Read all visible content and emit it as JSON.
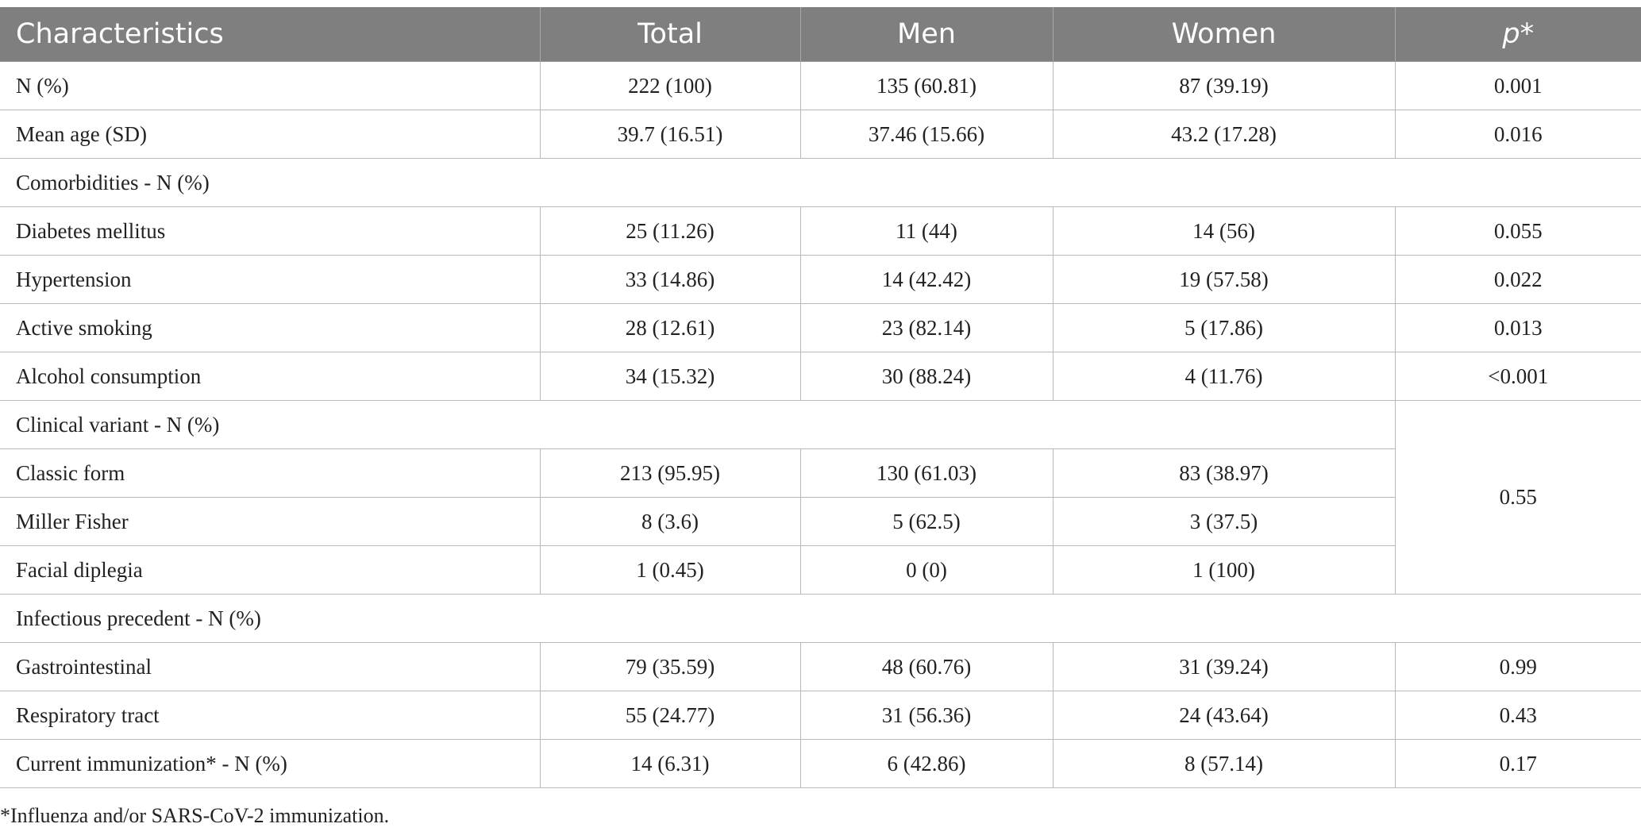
{
  "table": {
    "headers": [
      "Characteristics",
      "Total",
      "Men",
      "Women",
      "p*"
    ],
    "rows": [
      [
        "N (%)",
        "222 (100)",
        "135 (60.81)",
        "87 (39.19)",
        "0.001"
      ],
      [
        "Mean age (SD)",
        "39.7 (16.51)",
        "37.46 (15.66)",
        "43.2 (17.28)",
        "0.016"
      ],
      [
        "Comorbidities - N (%)"
      ],
      [
        "Diabetes mellitus",
        "25 (11.26)",
        "11 (44)",
        "14 (56)",
        "0.055"
      ],
      [
        "Hypertension",
        "33 (14.86)",
        "14 (42.42)",
        "19 (57.58)",
        "0.022"
      ],
      [
        "Active smoking",
        "28 (12.61)",
        "23 (82.14)",
        "5 (17.86)",
        "0.013"
      ],
      [
        "Alcohol consumption",
        "34 (15.32)",
        "30 (88.24)",
        "4 (11.76)",
        "<0.001"
      ],
      [
        "Clinical variant - N (%)"
      ],
      [
        "Classic form",
        "213 (95.95)",
        "130 (61.03)",
        "83 (38.97)",
        "0.55"
      ],
      [
        "Miller Fisher",
        "8 (3.6)",
        "5 (62.5)",
        "3 (37.5)"
      ],
      [
        "Facial diplegia",
        "1 (0.45)",
        "0 (0)",
        "1 (100)"
      ],
      [
        "Infectious precedent - N (%)"
      ],
      [
        "Gastrointestinal",
        "79 (35.59)",
        "48 (60.76)",
        "31 (39.24)",
        "0.99"
      ],
      [
        "Respiratory tract",
        "55 (24.77)",
        "31 (56.36)",
        "24 (43.64)",
        "0.43"
      ],
      [
        "Current immunization* - N (%)",
        "14 (6.31)",
        "6 (42.86)",
        "8 (57.14)",
        "0.17"
      ]
    ]
  },
  "footnote": "*Influenza and/or SARS-CoV-2 immunization."
}
